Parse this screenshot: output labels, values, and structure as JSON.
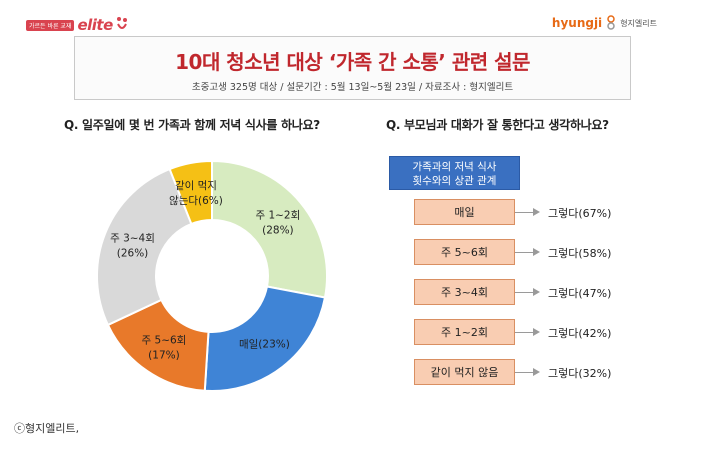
{
  "header": {
    "logo_left_badge": "가르든 바른 교재",
    "logo_left_word": "elite",
    "logo_right_word": "hyungji",
    "logo_right_ko": "형지엘리트",
    "title": "10대 청소년 대상 ‘가족 간 소통’ 관련 설문",
    "subtitle": "초중고생 325명 대상 / 설문기간 : 5월 13일~5월 23일 / 자료조사 : 형지엘리트"
  },
  "colors": {
    "title_red": "#c0272d",
    "slice_green": "#d7ebc0",
    "slice_blue": "#3f84d6",
    "slice_orange": "#e8792a",
    "slice_gray": "#d9d9d9",
    "slice_yellow": "#f5c015",
    "panel_blue": "#3a70c1",
    "freq_box": "#f9cdb2"
  },
  "chart_data": [
    {
      "type": "pie",
      "title": "Q. 일주일에 몇 번 가족과 함께 저녁 식사를 하나요?",
      "slices": [
        {
          "label_line1": "주 1~2회",
          "label_line2": "(28%)",
          "value": 28,
          "color": "#d7ebc0"
        },
        {
          "label_line1": "매일(23%)",
          "label_line2": "",
          "value": 23,
          "color": "#3f84d6"
        },
        {
          "label_line1": "주 5~6회",
          "label_line2": "(17%)",
          "value": 17,
          "color": "#e8792a"
        },
        {
          "label_line1": "주 3~4회",
          "label_line2": "(26%)",
          "value": 26,
          "color": "#d9d9d9"
        },
        {
          "label_line1": "같이 먹지",
          "label_line2": "않는다(6%)",
          "value": 6,
          "color": "#f5c015"
        }
      ]
    },
    {
      "type": "table",
      "title": "Q. 부모님과 대화가 잘 통한다고 생각하나요?",
      "header_line1": "가족과의 저녁 식사",
      "header_line2": "횟수와의 상관 관계",
      "rows": [
        {
          "frequency": "매일",
          "answer": "그렇다(67%)",
          "value": 67
        },
        {
          "frequency": "주 5~6회",
          "answer": "그렇다(58%)",
          "value": 58
        },
        {
          "frequency": "주 3~4회",
          "answer": "그렇다(47%)",
          "value": 47
        },
        {
          "frequency": "주 1~2회",
          "answer": "그렇다(42%)",
          "value": 42
        },
        {
          "frequency": "같이 먹지 않음",
          "answer": "그렇다(32%)",
          "value": 32
        }
      ]
    }
  ],
  "footer": {
    "copyright": "ⓒ형지엘리트,"
  }
}
